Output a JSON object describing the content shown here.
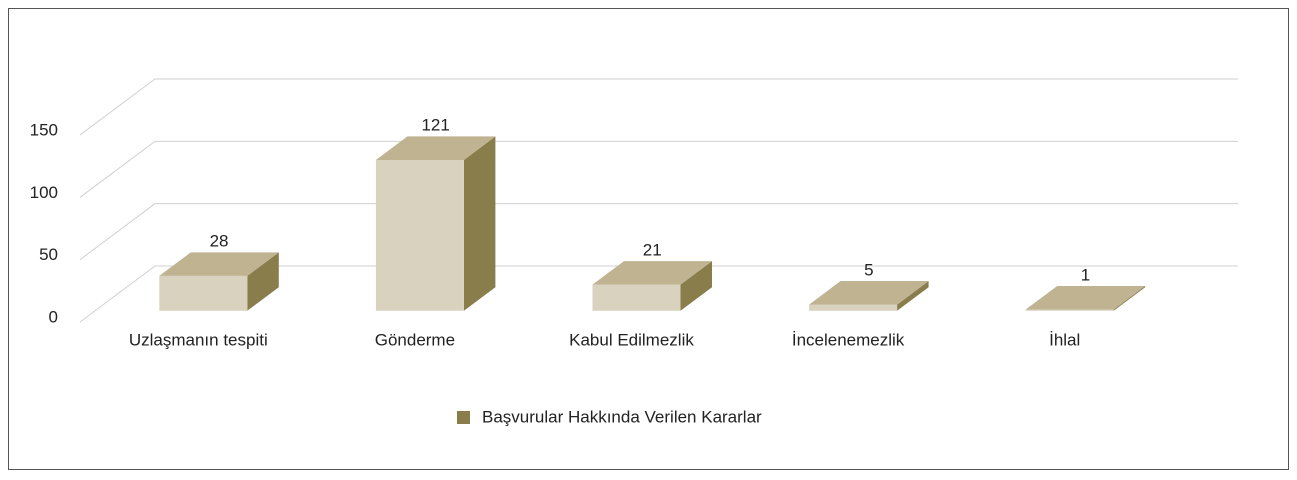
{
  "chart_data": {
    "type": "bar3d",
    "categories": [
      "Uzlaşmanın tespiti",
      "Gönderme",
      "Kabul Edilmezlik",
      "İncelenemezlik",
      "İhlal"
    ],
    "series": [
      {
        "name": "Başvurular Hakkında Verilen Kararlar",
        "color": "#8a7d4c",
        "values": [
          28,
          121,
          21,
          5,
          1
        ]
      }
    ],
    "ylim": [
      0,
      150
    ],
    "yticks": [
      0,
      50,
      100,
      150
    ],
    "grid": true,
    "legend": "bottom"
  }
}
